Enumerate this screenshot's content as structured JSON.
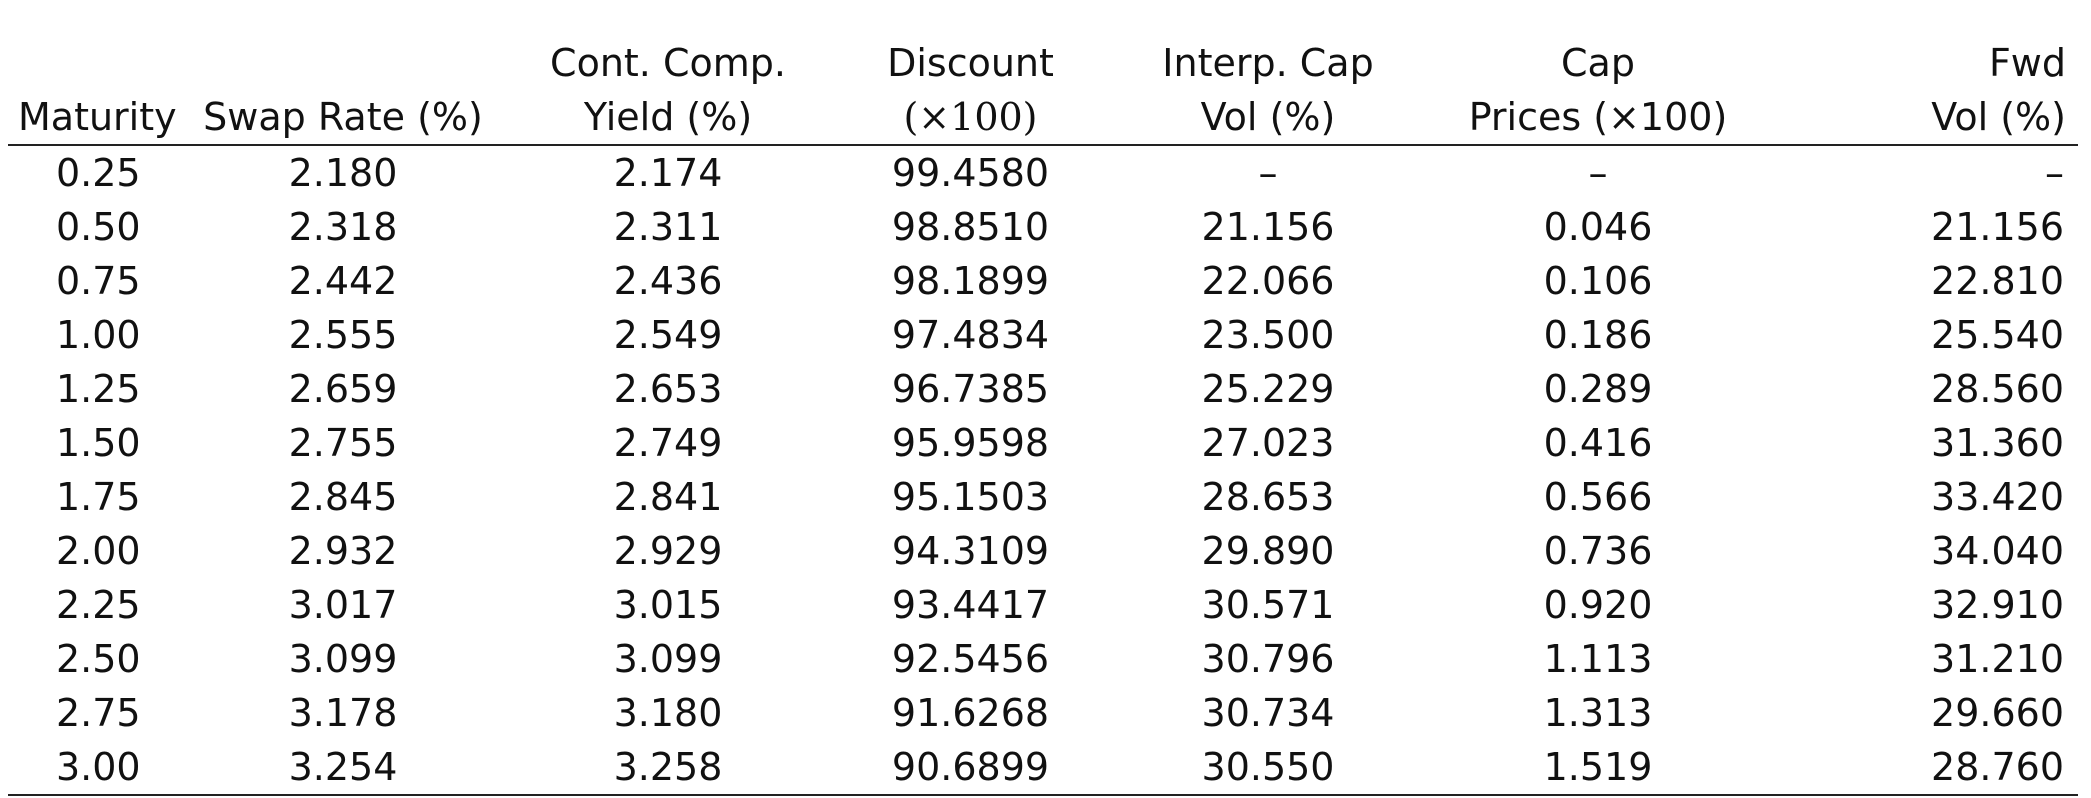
{
  "headers": {
    "maturity": [
      "",
      "Maturity"
    ],
    "swap_rate": [
      "",
      "Swap Rate (%)"
    ],
    "yield": [
      "Cont. Comp.",
      "Yield (%)"
    ],
    "discount": [
      "Discount",
      "(×100)"
    ],
    "cap_vol": [
      "Interp. Cap",
      "Vol (%)"
    ],
    "cap_prices": [
      "Cap",
      "Prices (×100)"
    ],
    "fwd_vol": [
      "Fwd",
      "Vol (%)"
    ]
  },
  "rows": [
    [
      "0.25",
      "2.180",
      "2.174",
      "99.4580",
      "–",
      "–",
      "–"
    ],
    [
      "0.50",
      "2.318",
      "2.311",
      "98.8510",
      "21.156",
      "0.046",
      "21.156"
    ],
    [
      "0.75",
      "2.442",
      "2.436",
      "98.1899",
      "22.066",
      "0.106",
      "22.810"
    ],
    [
      "1.00",
      "2.555",
      "2.549",
      "97.4834",
      "23.500",
      "0.186",
      "25.540"
    ],
    [
      "1.25",
      "2.659",
      "2.653",
      "96.7385",
      "25.229",
      "0.289",
      "28.560"
    ],
    [
      "1.50",
      "2.755",
      "2.749",
      "95.9598",
      "27.023",
      "0.416",
      "31.360"
    ],
    [
      "1.75",
      "2.845",
      "2.841",
      "95.1503",
      "28.653",
      "0.566",
      "33.420"
    ],
    [
      "2.00",
      "2.932",
      "2.929",
      "94.3109",
      "29.890",
      "0.736",
      "34.040"
    ],
    [
      "2.25",
      "3.017",
      "3.015",
      "93.4417",
      "30.571",
      "0.920",
      "32.910"
    ],
    [
      "2.50",
      "3.099",
      "3.099",
      "92.5456",
      "30.796",
      "1.113",
      "31.210"
    ],
    [
      "2.75",
      "3.178",
      "3.180",
      "91.6268",
      "30.734",
      "1.313",
      "29.660"
    ],
    [
      "3.00",
      "3.254",
      "3.258",
      "90.6899",
      "30.550",
      "1.519",
      "28.760"
    ]
  ]
}
